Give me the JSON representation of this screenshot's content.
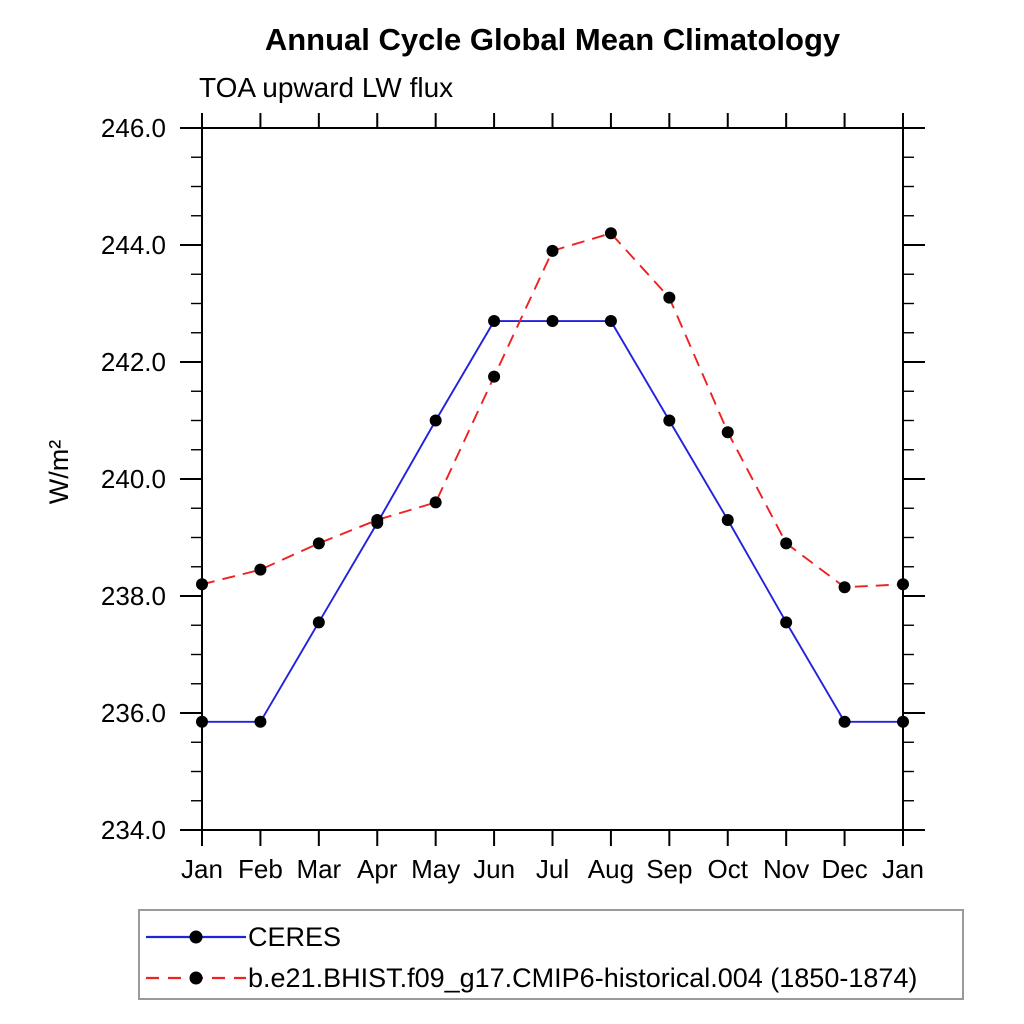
{
  "page": {
    "title": "Annual Cycle Global Mean Climatology",
    "subtitle": "TOA upward LW flux"
  },
  "chart_data": {
    "type": "line",
    "title": "Annual Cycle Global Mean Climatology",
    "subtitle": "TOA upward LW flux",
    "xlabel": "",
    "ylabel": "W/m²",
    "x_tick_labels": [
      "Jan",
      "Feb",
      "Mar",
      "Apr",
      "May",
      "Jun",
      "Jul",
      "Aug",
      "Sep",
      "Oct",
      "Nov",
      "Dec",
      "Jan"
    ],
    "ylim": [
      234.0,
      246.0
    ],
    "y_major_step": 2.0,
    "y_minor_step": 0.5,
    "y_tick_decimals": 1,
    "grid": false,
    "frame": "box",
    "legend_position": "bottom-left",
    "axis_color": "#000000",
    "series": [
      {
        "name": "CERES",
        "color": "#2222dd",
        "style": "solid",
        "marker": "circle",
        "marker_color": "#000000",
        "values": [
          235.85,
          235.85,
          237.55,
          239.25,
          241.0,
          242.7,
          242.7,
          242.7,
          241.0,
          239.3,
          237.55,
          235.85,
          235.85
        ]
      },
      {
        "name": "b.e21.BHIST.f09_g17.CMIP6-historical.004 (1850-1874)",
        "color": "#ee2222",
        "style": "dashed",
        "marker": "circle",
        "marker_color": "#000000",
        "values": [
          238.2,
          238.45,
          238.9,
          239.3,
          239.6,
          241.75,
          243.9,
          244.2,
          243.1,
          240.8,
          238.9,
          238.15,
          238.2
        ]
      }
    ]
  }
}
